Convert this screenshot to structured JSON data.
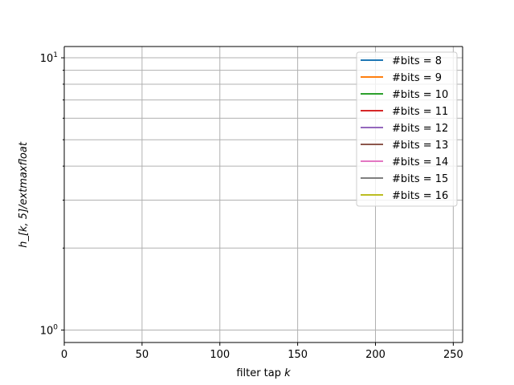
{
  "chart_data": {
    "type": "line",
    "xlabel": "filter tap",
    "xlabel_var": "k",
    "ylabel": "h_[k, 5]/extmaxfloat",
    "xlim": [
      0,
      256
    ],
    "ylim": [
      0.9,
      11
    ],
    "yscale": "log",
    "grid": true,
    "x_ticks": [
      0,
      50,
      100,
      150,
      200,
      250
    ],
    "y_major_ticks": [
      1,
      10
    ],
    "y_minor_ticks": [
      2,
      3,
      4,
      5,
      6,
      7,
      8,
      9
    ],
    "y_major_tick_labels": [
      {
        "base": "10",
        "exp": "0"
      },
      {
        "base": "10",
        "exp": "1"
      }
    ],
    "legend_position": "top-right",
    "series": [
      {
        "name": "#bits = 8",
        "color": "#1f77b4",
        "values": []
      },
      {
        "name": "#bits = 9",
        "color": "#ff7f0e",
        "values": []
      },
      {
        "name": "#bits = 10",
        "color": "#2ca02c",
        "values": []
      },
      {
        "name": "#bits = 11",
        "color": "#d62728",
        "values": []
      },
      {
        "name": "#bits = 12",
        "color": "#9467bd",
        "values": []
      },
      {
        "name": "#bits = 13",
        "color": "#8c564b",
        "values": []
      },
      {
        "name": "#bits = 14",
        "color": "#e377c2",
        "values": []
      },
      {
        "name": "#bits = 15",
        "color": "#7f7f7f",
        "values": []
      },
      {
        "name": "#bits = 16",
        "color": "#bcbd22",
        "values": []
      }
    ]
  }
}
